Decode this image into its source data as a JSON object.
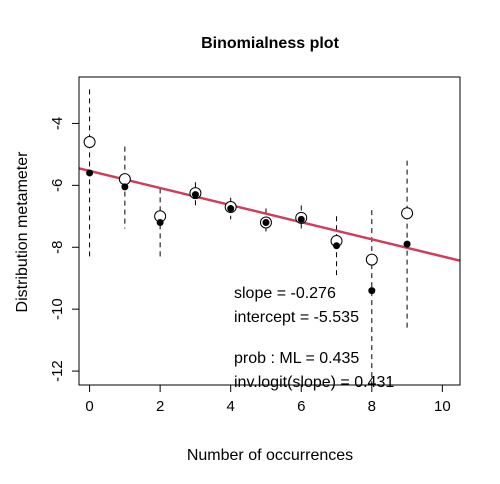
{
  "chart_data": {
    "type": "scatter",
    "title": "Binomialness plot",
    "xlabel": "Number of occurrences",
    "ylabel": "Distribution metameter",
    "xlim": [
      -0.3,
      10.5
    ],
    "ylim": [
      -12.45,
      -2.5
    ],
    "x_ticks": [
      0,
      2,
      4,
      6,
      8,
      10
    ],
    "y_ticks": [
      -12,
      -10,
      -8,
      -6,
      -4
    ],
    "grid": false,
    "x": [
      0,
      1,
      2,
      3,
      4,
      5,
      6,
      7,
      8,
      9
    ],
    "series": [
      {
        "marker": "open-circle",
        "values": [
          -4.6,
          -5.8,
          -7.0,
          -6.25,
          -6.7,
          -7.2,
          -7.05,
          -7.8,
          -8.4,
          -6.9
        ]
      },
      {
        "marker": "filled-dot",
        "values": [
          -5.6,
          -6.05,
          -7.2,
          -6.3,
          -6.75,
          -7.2,
          -7.1,
          -7.95,
          -9.4,
          -7.9
        ]
      }
    ],
    "error_bars": {
      "lower": [
        -8.3,
        -7.4,
        -8.3,
        -6.7,
        -7.1,
        -7.6,
        -7.5,
        -8.9,
        -12.45,
        -10.6
      ],
      "upper": [
        -2.9,
        -4.75,
        -6.1,
        -5.9,
        -6.4,
        -6.75,
        -6.65,
        -7.0,
        -6.8,
        -5.2
      ]
    },
    "fit_line": {
      "slope": -0.276,
      "intercept": -5.535,
      "color": "#d03c5b"
    },
    "annotations": {
      "slope": "slope = -0.276",
      "intercept": "intercept = -5.535",
      "prob": "prob : ML = 0.435",
      "invlogit": "inv.logit(slope) = 0.431"
    }
  }
}
